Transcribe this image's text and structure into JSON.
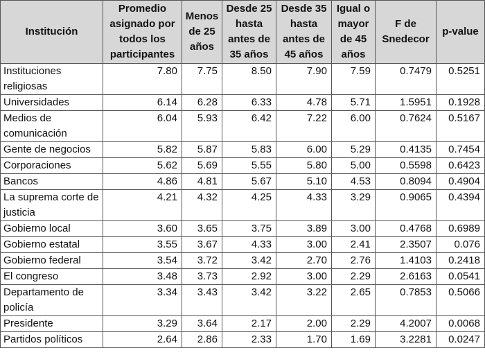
{
  "table": {
    "headers": [
      "Institución",
      "Promedio asignado por todos los participantes",
      "Menos de 25 años",
      "Desde 25 hasta antes de 35 años",
      "Desde 35 hasta antes de 45 años",
      "Igual o mayor de 45 años",
      "F de Snedecor",
      "p-value"
    ],
    "rows": [
      [
        "Instituciones religiosas",
        "7.80",
        "7.75",
        "8.50",
        "7.90",
        "7.59",
        "0.7479",
        "0.5251"
      ],
      [
        "Universidades",
        "6.14",
        "6.28",
        "6.33",
        "4.78",
        "5.71",
        "1.5951",
        "0.1928"
      ],
      [
        "Medios de comunicación",
        "6.04",
        "5.93",
        "6.42",
        "7.22",
        "6.00",
        "0.7624",
        "0.5167"
      ],
      [
        "Gente de negocios",
        "5.82",
        "5.87",
        "5.83",
        "6.00",
        "5.29",
        "0.4135",
        "0.7454"
      ],
      [
        "Corporaciones",
        "5.62",
        "5.69",
        "5.55",
        "5.80",
        "5.00",
        "0.5598",
        "0.6423"
      ],
      [
        "Bancos",
        "4.86",
        "4.81",
        "5.67",
        "5.10",
        "4.53",
        "0.8094",
        "0.4904"
      ],
      [
        "La suprema corte de justicia",
        "4.21",
        "4.32",
        "4.25",
        "4.33",
        "3.29",
        "0.9065",
        "0.4394"
      ],
      [
        "Gobierno local",
        "3.60",
        "3.65",
        "3.75",
        "3.89",
        "3.00",
        "0.4768",
        "0.6989"
      ],
      [
        "Gobierno estatal",
        "3.55",
        "3.67",
        "4.33",
        "3.00",
        "2.41",
        "2.3507",
        "0.076"
      ],
      [
        "Gobierno federal",
        "3.54",
        "3.72",
        "3.42",
        "2.70",
        "2.76",
        "1.4103",
        "0.2418"
      ],
      [
        "El congreso",
        "3.48",
        "3.73",
        "2.92",
        "3.00",
        "2.29",
        "2.6163",
        "0.0541"
      ],
      [
        "Departamento de policía",
        "3.34",
        "3.43",
        "3.42",
        "3.22",
        "2.65",
        "0.7853",
        "0.5066"
      ],
      [
        "Presidente",
        "3.29",
        "3.64",
        "2.17",
        "2.00",
        "2.29",
        "4.2007",
        "0.0068"
      ],
      [
        "Partidos políticos",
        "2.64",
        "2.86",
        "2.33",
        "1.70",
        "1.69",
        "3.2281",
        "0.0247"
      ]
    ]
  }
}
